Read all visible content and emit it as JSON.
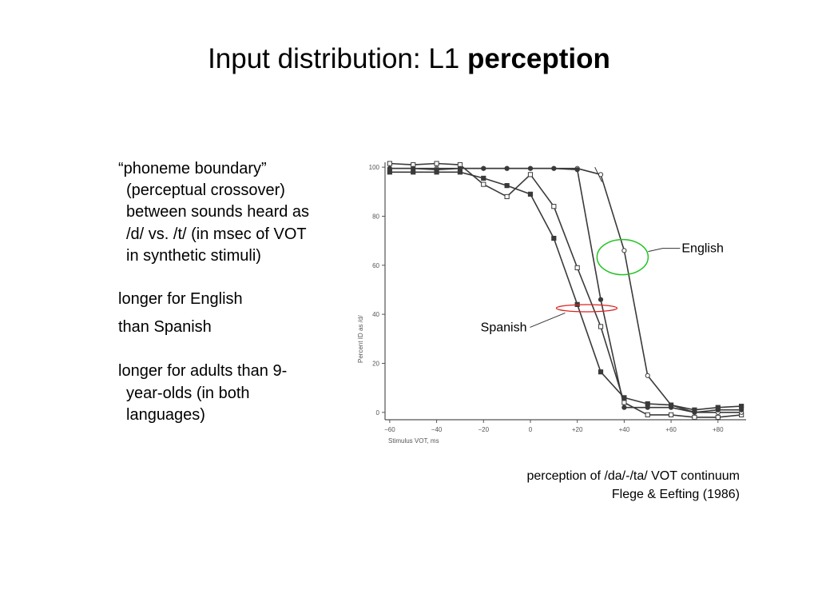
{
  "slide": {
    "title_regular": "Input distribution: L1 ",
    "title_bold": "perception"
  },
  "bullets": [
    {
      "text": "“phoneme boundary” (perceptual crossover) between sounds heard as /d/ vs. /t/ (in msec of VOT in synthetic stimuli)"
    },
    {
      "text": "longer for English"
    },
    {
      "text": "than Spanish"
    },
    {
      "text": "longer for adults than 9-year-olds (in both languages)"
    }
  ],
  "caption": {
    "line1": "perception of /da/-/ta/ VOT continuum",
    "line2": "Flege & Eefting (1986)"
  },
  "chart_data": {
    "type": "line",
    "xlabel": "Stimulus VOT, ms",
    "ylabel": "Percent ID as /d/",
    "xlim": [
      -62,
      92
    ],
    "ylim": [
      -3,
      102
    ],
    "x_ticks": [
      -60,
      -40,
      -20,
      0,
      20,
      40,
      60,
      80
    ],
    "x_tick_labels": [
      "−60",
      "−40",
      "−20",
      "0",
      "+20",
      "+40",
      "+60",
      "+80"
    ],
    "y_ticks": [
      0,
      20,
      40,
      60,
      80,
      100
    ],
    "y_tick_labels": [
      "0",
      "20",
      "40",
      "60",
      "80",
      "100"
    ],
    "x": [
      -60,
      -50,
      -40,
      -30,
      -20,
      -10,
      0,
      10,
      20,
      30,
      40,
      50,
      60,
      70,
      80,
      90
    ],
    "series": [
      {
        "marker": "open-square",
        "values": [
          101.5,
          101,
          101.5,
          101,
          93,
          88,
          97,
          84,
          59,
          35,
          4,
          -1,
          -1,
          -2,
          -2,
          -1
        ]
      },
      {
        "marker": "open-circle",
        "values": [
          99.5,
          99.5,
          99.5,
          99.5,
          99.5,
          99.5,
          99.5,
          99.5,
          99.5,
          97,
          66,
          15,
          3,
          0,
          0,
          0
        ]
      },
      {
        "marker": "filled-circle",
        "values": [
          99.5,
          99.5,
          99,
          99.5,
          99.5,
          99.5,
          99.5,
          99.5,
          99,
          46,
          2,
          2,
          2,
          0,
          1,
          1
        ]
      },
      {
        "marker": "filled-square",
        "values": [
          98,
          98,
          98,
          98,
          95.5,
          92.5,
          89,
          71,
          44,
          16.5,
          6,
          3.5,
          3,
          1,
          2,
          2.5
        ]
      }
    ],
    "annotations": [
      {
        "label": "English",
        "x": 40,
        "y": 63,
        "highlight_color": "#22c422"
      },
      {
        "label": "Spanish",
        "x": 23,
        "y": 42.5,
        "highlight_color": "#dd2222"
      }
    ],
    "line_color": "#3a3a3a"
  }
}
